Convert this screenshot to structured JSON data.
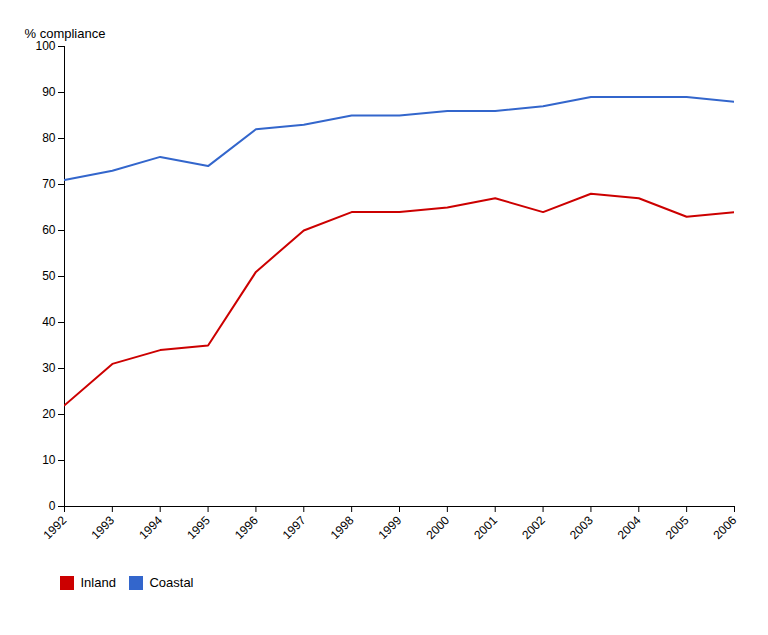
{
  "chart_data": {
    "type": "line",
    "ylabel": "% compliance",
    "x": [
      1992,
      1993,
      1994,
      1995,
      1996,
      1997,
      1998,
      1999,
      2000,
      2001,
      2002,
      2003,
      2004,
      2005,
      2006
    ],
    "series": [
      {
        "name": "Inland",
        "color": "#cc0000",
        "values": [
          22,
          31,
          34,
          35,
          51,
          60,
          64,
          64,
          65,
          67,
          64,
          68,
          67,
          63,
          64
        ]
      },
      {
        "name": "Coastal",
        "color": "#3366cc",
        "values": [
          71,
          73,
          76,
          74,
          82,
          83,
          85,
          85,
          86,
          86,
          87,
          89,
          89,
          89,
          88
        ]
      }
    ],
    "xlim": [
      1992,
      2006
    ],
    "xticks": [
      1992,
      1993,
      1994,
      1995,
      1996,
      1997,
      1998,
      1999,
      2000,
      2001,
      2002,
      2003,
      2004,
      2005,
      2006
    ],
    "ylim": [
      0,
      100
    ],
    "yticks": [
      0,
      10,
      20,
      30,
      40,
      50,
      60,
      70,
      80,
      90,
      100
    ],
    "grid": false,
    "legend": "bottom"
  }
}
